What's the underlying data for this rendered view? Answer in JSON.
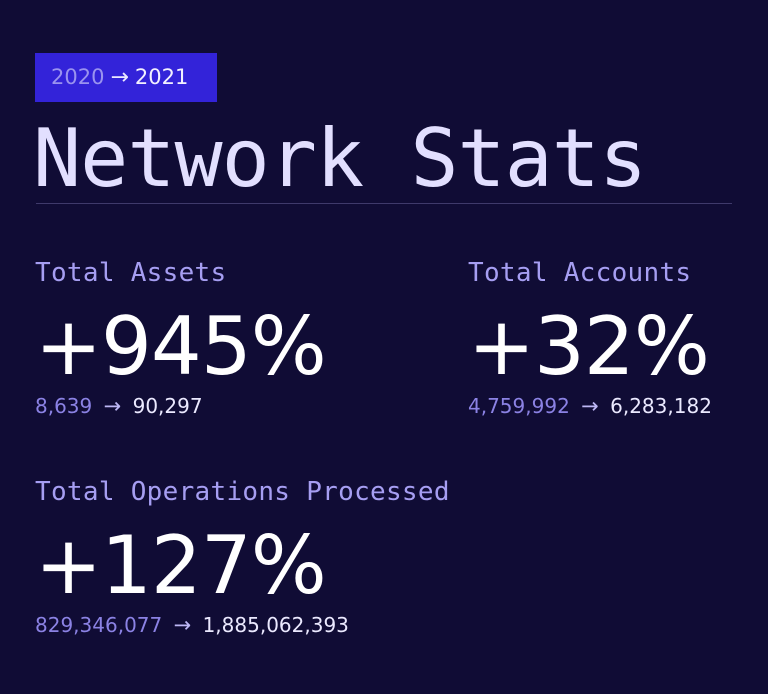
{
  "period": {
    "from": "2020",
    "arrow": "→",
    "to": "2021"
  },
  "title": "Network Stats",
  "stats": [
    {
      "label": "Total Assets",
      "change": "+945%",
      "from": "8,639",
      "arrow": "→",
      "to": "90,297"
    },
    {
      "label": "Total Accounts",
      "change": "+32%",
      "from": "4,759,992",
      "arrow": "→",
      "to": "6,283,182"
    },
    {
      "label": "Total Operations Processed",
      "change": "+127%",
      "from": "829,346,077",
      "arrow": "→",
      "to": "1,885,062,393"
    }
  ],
  "colors": {
    "background": "#100c35",
    "badge": "#3323d9",
    "label": "#a69ef2",
    "value": "#ffffff"
  },
  "icons": {
    "arrow": "arrow-right-icon"
  }
}
